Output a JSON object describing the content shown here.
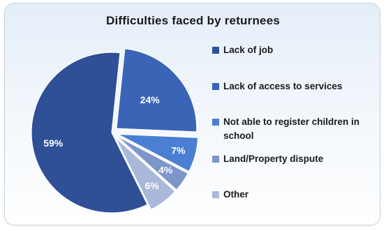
{
  "chart_data": {
    "type": "pie",
    "title": "Difficulties faced by returnees",
    "categories": [
      "Lack of job",
      "Lack of access to services",
      "Not able to register children in school",
      "Land/Property dispute",
      "Other"
    ],
    "values": [
      59,
      24,
      7,
      4,
      6
    ],
    "value_labels": [
      "59%",
      "24%",
      "7%",
      "4%",
      "6%"
    ],
    "colors": [
      "#2f4f96",
      "#3a64b6",
      "#4a7fd3",
      "#7d96c9",
      "#aab8d9"
    ],
    "legend_position": "right"
  }
}
